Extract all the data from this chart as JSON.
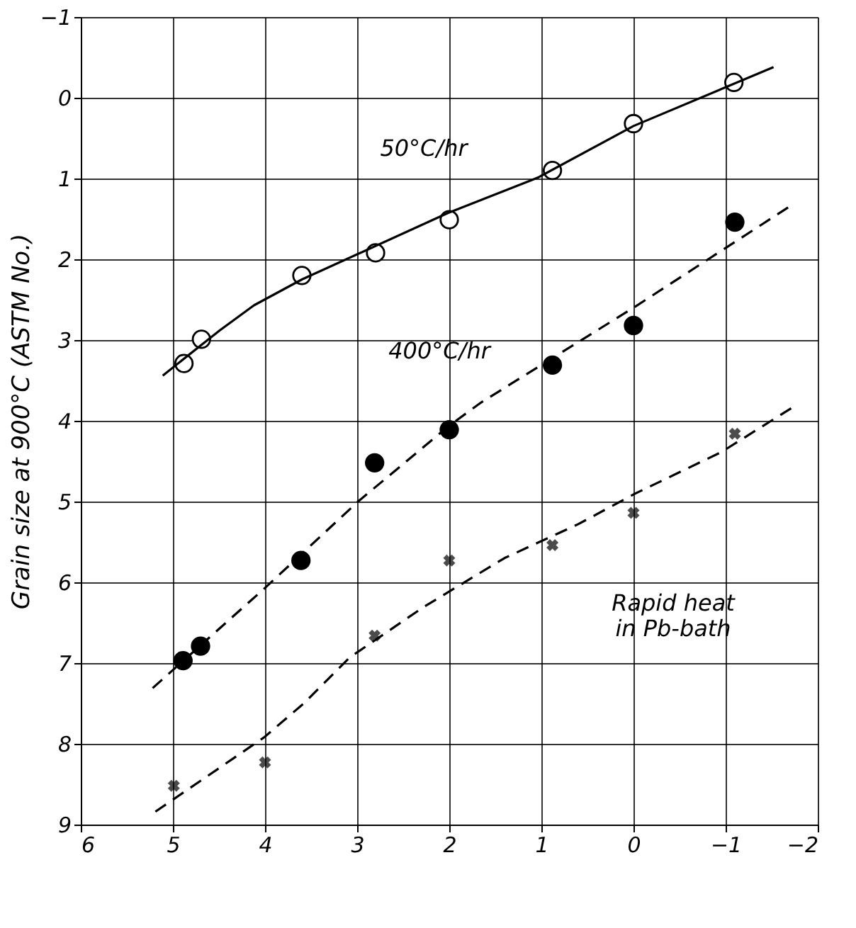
{
  "chart_data": {
    "type": "scatter",
    "ylabel": "Grain size at 900°C (ASTM No.)",
    "xlim": [
      6,
      -2
    ],
    "xticks": [
      6,
      5,
      4,
      3,
      2,
      1,
      0,
      -1,
      -2
    ],
    "ylim": [
      9,
      -1
    ],
    "yticks": [
      -1,
      0,
      1,
      2,
      3,
      4,
      5,
      6,
      7,
      8,
      9
    ],
    "grid": true,
    "series": [
      {
        "marker": "circle",
        "color": "#ffffff",
        "x": [
          4.88,
          4.69,
          3.6,
          2.8,
          2.0,
          0.88,
          0.0,
          -1.09
        ],
        "values": [
          3.29,
          2.99,
          2.2,
          1.92,
          1.51,
          0.9,
          0.32,
          -0.19
        ]
      },
      {
        "marker": "circle",
        "color": "#000000",
        "x": [
          4.89,
          4.7,
          3.61,
          2.81,
          2.0,
          0.88,
          0.0,
          -1.1
        ],
        "values": [
          6.97,
          6.79,
          5.73,
          4.52,
          4.11,
          3.31,
          2.82,
          1.54
        ]
      },
      {
        "marker": "cross",
        "color": "#000000",
        "x": [
          4.99,
          4.0,
          2.81,
          2.0,
          0.88,
          0.0,
          -1.1
        ],
        "values": [
          8.52,
          8.23,
          6.66,
          5.73,
          5.54,
          5.14,
          4.16
        ]
      },
      {
        "type": "line",
        "marker": "none",
        "line_style": "solid",
        "color": "#000000",
        "x": [
          5.11,
          4.49,
          4.12,
          3.6,
          2.02,
          1.04,
          0.0,
          -1.52
        ],
        "values": [
          3.44,
          2.88,
          2.57,
          2.25,
          1.43,
          0.99,
          0.35,
          -0.38
        ]
      },
      {
        "type": "line",
        "marker": "none",
        "line_style": "dashed",
        "color": "#000000",
        "x": [
          5.22,
          4.01,
          2.99,
          2.0,
          1.65,
          0.0,
          -1.73
        ],
        "values": [
          7.31,
          6.08,
          5.0,
          4.06,
          3.77,
          2.6,
          1.32
        ]
      },
      {
        "type": "line",
        "marker": "none",
        "line_style": "dashed",
        "color": "#000000",
        "x": [
          5.19,
          4.01,
          3.58,
          3.08,
          2.27,
          1.4,
          0.6,
          -0.02,
          -0.95,
          -1.76
        ],
        "values": [
          8.84,
          7.92,
          7.5,
          6.93,
          6.3,
          5.7,
          5.28,
          4.9,
          4.39,
          3.81
        ]
      }
    ],
    "annotations": [
      "50°C/hr",
      "400°C/hr",
      "Rapid heat\nin Pb-bath"
    ]
  }
}
